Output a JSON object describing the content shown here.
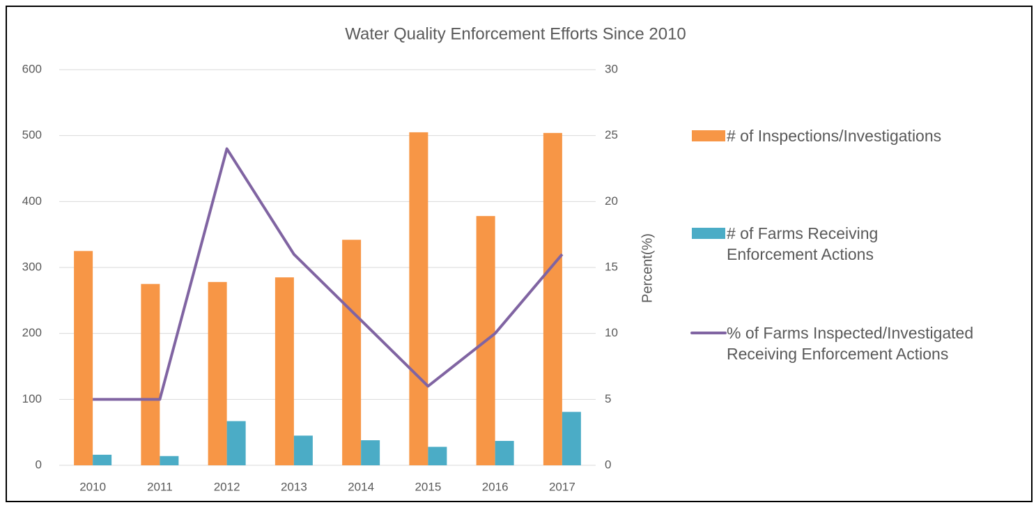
{
  "chart_data": {
    "type": "bar-line",
    "title": "Water Quality Enforcement Efforts Since 2010",
    "y2label": "Percent(%)",
    "categories": [
      "2010",
      "2011",
      "2012",
      "2013",
      "2014",
      "2015",
      "2016",
      "2017"
    ],
    "series": [
      {
        "name": "# of Inspections/Investigations",
        "color": "#f79646",
        "type": "bar",
        "values": [
          325,
          275,
          278,
          285,
          342,
          505,
          378,
          504
        ]
      },
      {
        "name": "# of Farms Receiving Enforcement Actions",
        "color": "#4bacc6",
        "type": "bar",
        "values": [
          16,
          14,
          67,
          45,
          38,
          28,
          37,
          81
        ]
      },
      {
        "name": "% of Farms Inspected/Investigated Receiving Enforcement Actions",
        "color": "#8064a2",
        "type": "line",
        "axis": "y2",
        "values": [
          5,
          5,
          24,
          16,
          11,
          6,
          10,
          16
        ]
      }
    ],
    "ylim": [
      0,
      600
    ],
    "yticks": [
      0,
      100,
      200,
      300,
      400,
      500,
      600
    ],
    "y2lim": [
      0,
      30
    ],
    "y2ticks": [
      0,
      5,
      10,
      15,
      20,
      25,
      30
    ],
    "grid": true,
    "legend": "right"
  }
}
